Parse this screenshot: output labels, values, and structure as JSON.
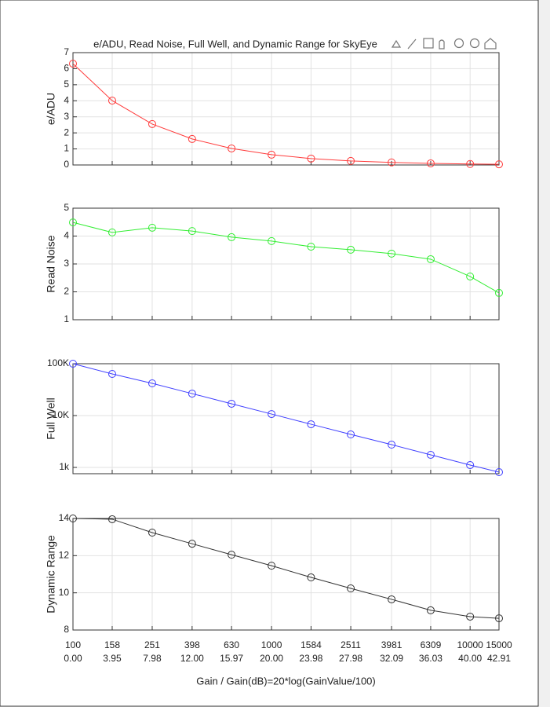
{
  "chart_data": [
    {
      "type": "line",
      "title": "e/ADU, Read Noise, Full Well, and Dynamic Range for SkyEye",
      "ylabel": "e/ADU",
      "x": [
        0,
        3.95,
        7.98,
        12.0,
        15.97,
        20.0,
        23.98,
        27.98,
        32.09,
        36.03,
        40.0,
        42.91
      ],
      "series": [
        {
          "color": "#ff3b3b",
          "values": [
            6.31,
            4.01,
            2.55,
            1.62,
            1.03,
            0.64,
            0.4,
            0.25,
            0.16,
            0.1,
            0.06,
            0.04
          ]
        }
      ],
      "xlim": [
        0,
        42.91
      ],
      "ylim": [
        0,
        7
      ],
      "yticks": [
        0,
        1,
        2,
        3,
        4,
        5,
        6,
        7
      ],
      "grid": true
    },
    {
      "type": "line",
      "ylabel": "Read Noise",
      "x": [
        0,
        3.95,
        7.98,
        12.0,
        15.97,
        20.0,
        23.98,
        27.98,
        32.09,
        36.03,
        40.0,
        42.91
      ],
      "series": [
        {
          "color": "#33ee33",
          "values": [
            4.49,
            4.13,
            4.3,
            4.18,
            3.96,
            3.82,
            3.62,
            3.51,
            3.37,
            3.17,
            2.55,
            1.96
          ]
        }
      ],
      "xlim": [
        0,
        42.91
      ],
      "ylim": [
        1,
        5
      ],
      "yticks": [
        1,
        2,
        3,
        4,
        5
      ],
      "grid": true
    },
    {
      "type": "line",
      "ylabel": "Full Well",
      "ylog": true,
      "x": [
        0,
        3.95,
        7.98,
        12.0,
        15.97,
        20.0,
        23.98,
        27.98,
        32.09,
        36.03,
        40.0,
        42.91
      ],
      "series": [
        {
          "color": "#4040ff",
          "values": [
            100000,
            63500,
            41800,
            26500,
            16900,
            10700,
            6800,
            4330,
            2750,
            1750,
            1110,
            811
          ]
        }
      ],
      "xlim": [
        0,
        42.91
      ],
      "ylim": [
        757,
        100000
      ],
      "yticks": [
        {
          "value": 1000,
          "label": "1k"
        },
        {
          "value": 10000,
          "label": "10K"
        },
        {
          "value": 100000,
          "label": "100K"
        }
      ],
      "grid": true
    },
    {
      "type": "line",
      "ylabel": "Dynamic Range",
      "xlabel": "Gain / Gain(dB)=20*log(GainValue/100)",
      "x": [
        0,
        3.95,
        7.98,
        12.0,
        15.97,
        20.0,
        23.98,
        27.98,
        32.09,
        36.03,
        40.0,
        42.91
      ],
      "series": [
        {
          "color": "#333333",
          "values": [
            14.0,
            13.96,
            13.24,
            12.64,
            12.05,
            11.46,
            10.83,
            10.24,
            9.65,
            9.06,
            8.72,
            8.63
          ]
        }
      ],
      "xlim": [
        0,
        42.91
      ],
      "ylim": [
        8,
        14
      ],
      "yticks": [
        8,
        10,
        12,
        14
      ],
      "grid": true,
      "xticks": [
        {
          "value": 0,
          "label": "100",
          "sublabel": "0.00"
        },
        {
          "value": 3.95,
          "label": "158",
          "sublabel": "3.95"
        },
        {
          "value": 7.98,
          "label": "251",
          "sublabel": "7.98"
        },
        {
          "value": 12.0,
          "label": "398",
          "sublabel": "12.00"
        },
        {
          "value": 15.97,
          "label": "630",
          "sublabel": "15.97"
        },
        {
          "value": 20.0,
          "label": "1000",
          "sublabel": "20.00"
        },
        {
          "value": 23.98,
          "label": "1584",
          "sublabel": "23.98"
        },
        {
          "value": 27.98,
          "label": "2511",
          "sublabel": "27.98"
        },
        {
          "value": 32.09,
          "label": "3981",
          "sublabel": "32.09"
        },
        {
          "value": 36.03,
          "label": "6309",
          "sublabel": "36.03"
        },
        {
          "value": 40.0,
          "label": "10000",
          "sublabel": "40.00"
        },
        {
          "value": 42.91,
          "label": "15000",
          "sublabel": "42.91"
        }
      ]
    }
  ]
}
